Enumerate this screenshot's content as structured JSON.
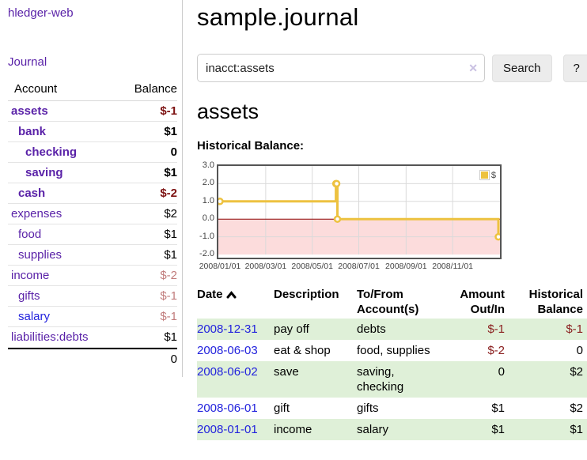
{
  "app": {
    "brand": "hledger-web"
  },
  "nav": {
    "journal": "Journal"
  },
  "sidebar": {
    "headers": {
      "account": "Account",
      "balance": "Balance"
    },
    "accounts": [
      {
        "name": "assets",
        "balance": "$-1"
      },
      {
        "name": "bank",
        "balance": "$1"
      },
      {
        "name": "checking",
        "balance": "0"
      },
      {
        "name": "saving",
        "balance": "$1"
      },
      {
        "name": "cash",
        "balance": "$-2"
      },
      {
        "name": "expenses",
        "balance": "$2"
      },
      {
        "name": "food",
        "balance": "$1"
      },
      {
        "name": "supplies",
        "balance": "$1"
      },
      {
        "name": "income",
        "balance": "$-2"
      },
      {
        "name": "gifts",
        "balance": "$-1"
      },
      {
        "name": "salary",
        "balance": "$-1"
      },
      {
        "name": "liabilities:debts",
        "balance": "$1"
      }
    ],
    "total": "0"
  },
  "header": {
    "title": "sample.journal"
  },
  "search": {
    "value": "inacct:assets",
    "clear": "✕",
    "button": "Search",
    "help": "?"
  },
  "account_page": {
    "heading": "assets",
    "section_label": "Historical Balance:"
  },
  "chart_data": {
    "type": "line",
    "style": "step",
    "title": "Historical Balance",
    "series": [
      {
        "name": "$",
        "points": [
          {
            "date": "2008-01-01",
            "value": 1
          },
          {
            "date": "2008-06-01",
            "value": 2
          },
          {
            "date": "2008-06-02",
            "value": 2
          },
          {
            "date": "2008-06-03",
            "value": 0
          },
          {
            "date": "2008-12-31",
            "value": -1
          }
        ]
      }
    ],
    "x_ticks": [
      "2008-01-01",
      "2008-03-01",
      "2008-05-01",
      "2008-07-01",
      "2008-09-01",
      "2008-11-01"
    ],
    "x_tick_labels": [
      "2008/01/01",
      "2008/03/01",
      "2008/05/01",
      "2008/07/01",
      "2008/09/01",
      "2008/11/01"
    ],
    "x_start": "2008-01-01",
    "x_end": "2008-12-31",
    "y_ticks": [
      3,
      2,
      1,
      0,
      -1,
      -2
    ],
    "y_tick_labels": [
      "3.0",
      "2.0",
      "1.0",
      "0.0",
      "-1.0",
      "-2.0"
    ],
    "ylim": [
      -2,
      3
    ],
    "legend_position": "top-right",
    "grid": true,
    "colors": {
      "line": "#edc240",
      "marker_fill": "#ffffff",
      "negative_region": "#fcdcdc",
      "zero_line": "#8b0000",
      "grid": "#dadada",
      "border": "#545454"
    }
  },
  "register": {
    "headers": {
      "date": "Date",
      "description": "Description",
      "tofrom_l1": "To/From",
      "tofrom_l2": "Account(s)",
      "amount_l1": "Amount",
      "amount_l2": "Out/In",
      "balance_l1": "Historical",
      "balance_l2": "Balance"
    },
    "rows": [
      {
        "date": "2008-12-31",
        "description": "pay off",
        "accounts": "debts",
        "amount": "$-1",
        "balance": "$-1"
      },
      {
        "date": "2008-06-03",
        "description": "eat & shop",
        "accounts": "food, supplies",
        "amount": "$-2",
        "balance": "0"
      },
      {
        "date": "2008-06-02",
        "description": "save",
        "accounts": "saving, checking",
        "amount": "0",
        "balance": "$2"
      },
      {
        "date": "2008-06-01",
        "description": "gift",
        "accounts": "gifts",
        "amount": "$1",
        "balance": "$2"
      },
      {
        "date": "2008-01-01",
        "description": "income",
        "accounts": "salary",
        "amount": "$1",
        "balance": "$1"
      }
    ]
  },
  "colors": {
    "link_purple": "#5a22a8",
    "link_blue": "#2323dd",
    "neg_strong": "#7d1212",
    "neg_soft": "#c17c7c",
    "neg_table": "#8b2020",
    "row_stripe_green": "#dff0d8"
  }
}
